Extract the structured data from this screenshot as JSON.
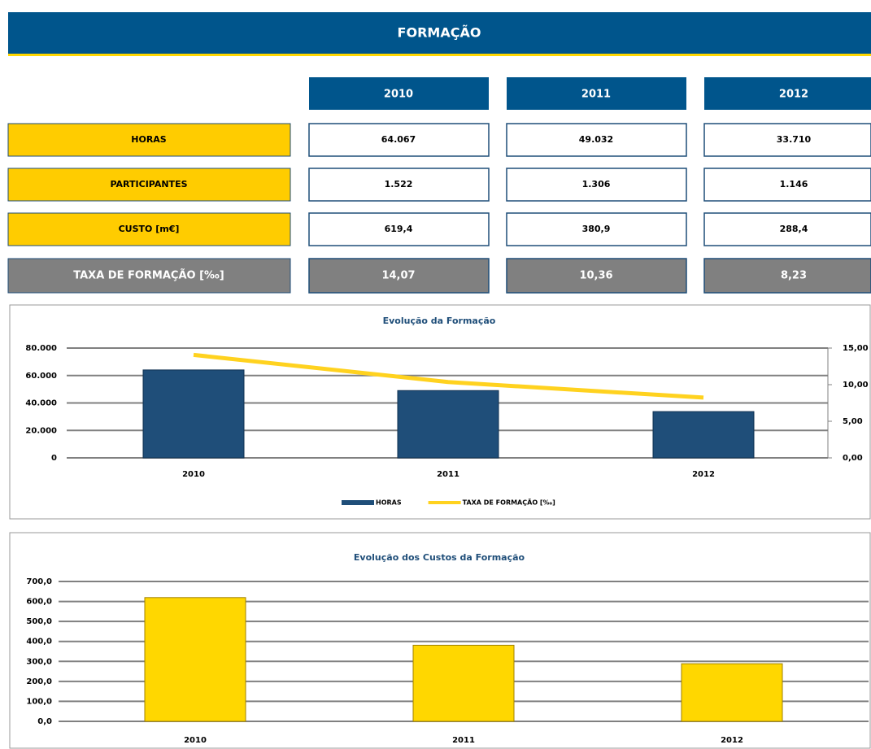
{
  "header": {
    "title": "FORMAÇÃO"
  },
  "table": {
    "columns": [
      "2010",
      "2011",
      "2012"
    ],
    "rows": [
      {
        "label": "HORAS",
        "cells": [
          "64.067",
          "49.032",
          "33.710"
        ]
      },
      {
        "label": "PARTICIPANTES",
        "cells": [
          "1.522",
          "1.306",
          "1.146"
        ]
      },
      {
        "label": "CUSTO [m€]",
        "cells": [
          "619,4",
          "380,9",
          "288,4"
        ]
      },
      {
        "label": "TAXA DE FORMAÇÃO [‰]",
        "cells": [
          "14,07",
          "10,36",
          "8,23"
        ]
      }
    ]
  },
  "chart_data": [
    {
      "type": "combo",
      "title": "Evolução da Formação",
      "categories": [
        "2010",
        "2011",
        "2012"
      ],
      "series": [
        {
          "name": "HORAS",
          "type": "bar",
          "color": "#1f4e79",
          "values": [
            64067,
            49032,
            33710
          ]
        },
        {
          "name": "TAXA DE FORMAÇÃO [‰]",
          "type": "line",
          "axis": "y2",
          "color": "#ffd21f",
          "values": [
            14.07,
            10.36,
            8.23
          ]
        }
      ],
      "ylim": [
        0,
        80000
      ],
      "yticks": [
        0,
        {
          "value": 20000,
          "label": "20.000"
        },
        {
          "value": 40000,
          "label": "40.000"
        },
        {
          "value": 60000,
          "label": "60.000"
        },
        {
          "value": 80000,
          "label": "80.000"
        }
      ],
      "y2lim": [
        0,
        15
      ],
      "y2ticks": [
        {
          "value": 0,
          "label": "0,00"
        },
        {
          "value": 5,
          "label": "5,00"
        },
        {
          "value": 10,
          "label": "10,00"
        },
        {
          "value": 15,
          "label": "15,00"
        }
      ],
      "grid": true,
      "legend": "bottom"
    },
    {
      "type": "bar",
      "title": "Evolução dos Custos da Formação",
      "categories": [
        "2010",
        "2011",
        "2012"
      ],
      "values": [
        619.4,
        380.9,
        288.4
      ],
      "color": "#ffd700",
      "ylim": [
        0,
        700
      ],
      "yticks": [
        {
          "value": 0,
          "label": "0,0"
        },
        {
          "value": 100,
          "label": "100,0"
        },
        {
          "value": 200,
          "label": "200,0"
        },
        {
          "value": 300,
          "label": "300,0"
        },
        {
          "value": 400,
          "label": "400,0"
        },
        {
          "value": 500,
          "label": "500,0"
        },
        {
          "value": 600,
          "label": "600,0"
        },
        {
          "value": 700,
          "label": "700,0"
        }
      ],
      "grid": true
    }
  ]
}
